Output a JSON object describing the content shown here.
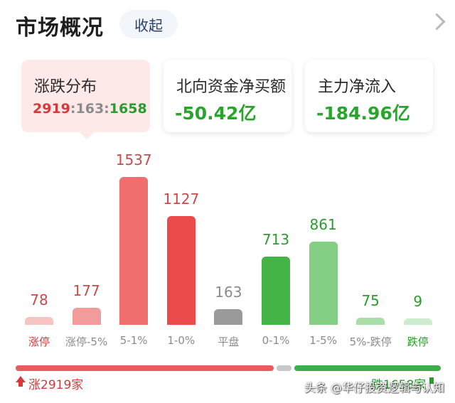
{
  "header": {
    "title": "市场概况",
    "collapse_label": "收起"
  },
  "cards": {
    "distribution": {
      "label": "涨跌分布",
      "up": "2919",
      "flat": "163",
      "down": "1658",
      "sep": ":"
    },
    "northbound": {
      "label": "北向资金净买额",
      "value": "-50.42亿"
    },
    "main_flow": {
      "label": "主力净流入",
      "value": "-184.96亿"
    }
  },
  "chart_data": {
    "type": "bar",
    "categories": [
      "涨停",
      "涨停-5%",
      "5-1%",
      "1-0%",
      "平盘",
      "0-1%",
      "1-5%",
      "5%-跌停",
      "跌停"
    ],
    "values": [
      78,
      177,
      1537,
      1127,
      163,
      713,
      861,
      75,
      9
    ],
    "value_labels": [
      "78",
      "177",
      "1537",
      "1127",
      "163",
      "713",
      "861",
      "75",
      "9"
    ],
    "ylim": [
      0,
      1537
    ],
    "colors": [
      "#f7c4c4",
      "#f29b9b",
      "#ef6f6f",
      "#ea4a4a",
      "#9a9a9a",
      "#45b446",
      "#84cf84",
      "#a9dea9",
      "#cdebcd"
    ],
    "value_colors": [
      "#c94a4a",
      "#c94a4a",
      "#c94a4a",
      "#c94a4a",
      "#8b8b8b",
      "#2a9c2f",
      "#2a9c2f",
      "#2a9c2f",
      "#2a9c2f"
    ],
    "category_colors": [
      "#d8383a",
      "#8b8b8b",
      "#8b8b8b",
      "#8b8b8b",
      "#8b8b8b",
      "#8b8b8b",
      "#8b8b8b",
      "#8b8b8b",
      "#2a9c2f"
    ]
  },
  "summary": {
    "up_label": "涨2919家",
    "down_label": "跌1658家",
    "up_count": 2919,
    "flat_count": 163,
    "down_count": 1658,
    "up_color": "#ea5a5f",
    "flat_color": "#c8c8c8",
    "down_color": "#3fae49"
  },
  "watermark": "头条 @华仔投资逻辑与认知"
}
